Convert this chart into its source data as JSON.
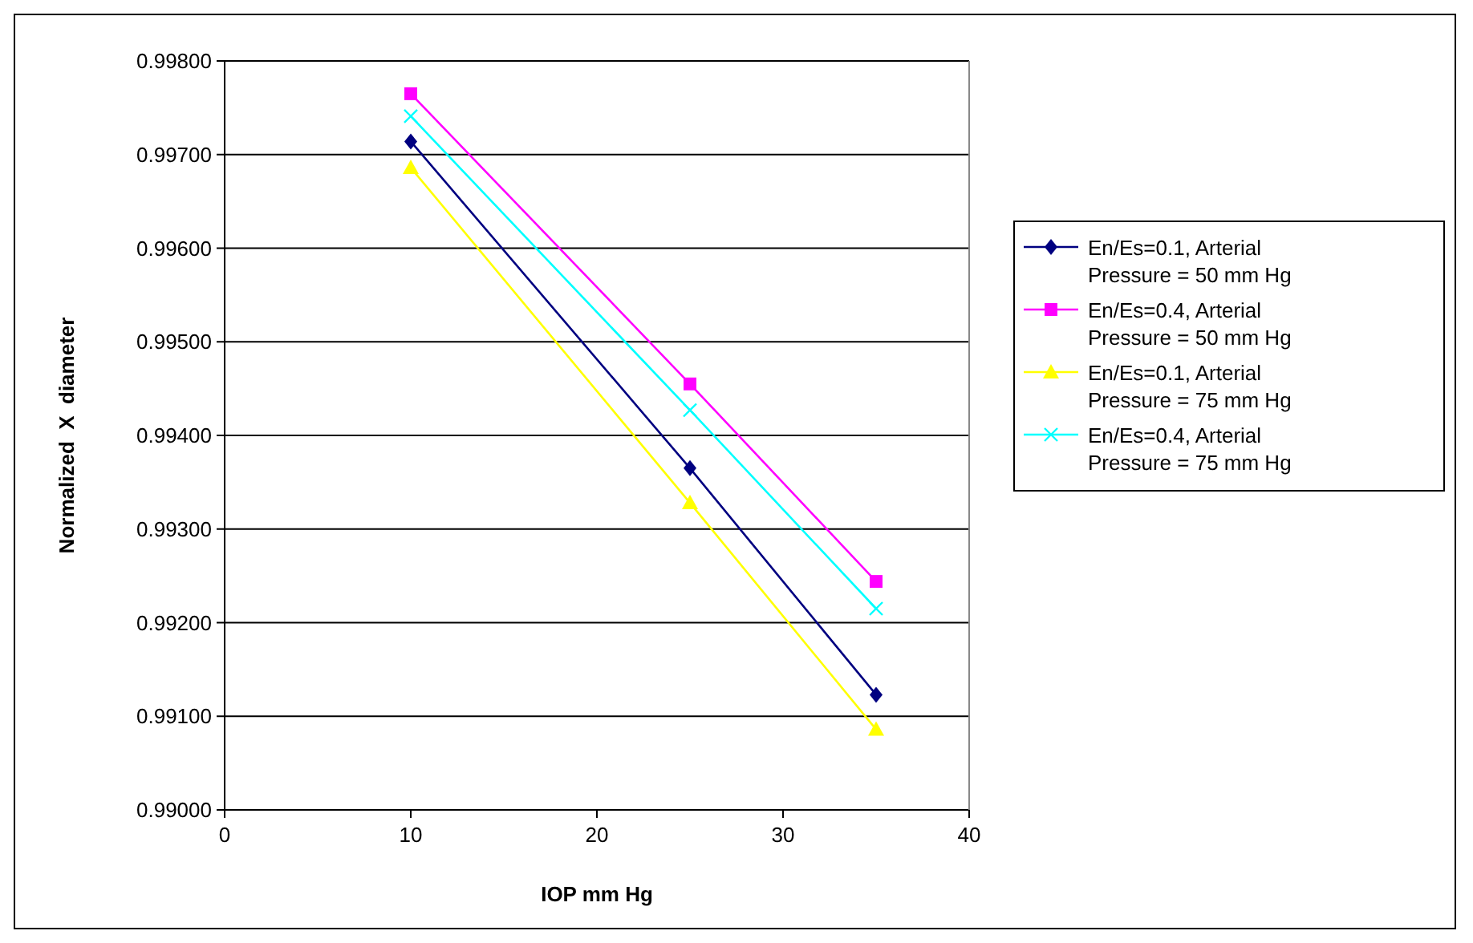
{
  "chart_data": {
    "type": "line",
    "xlabel": "IOP mm Hg",
    "ylabel": "Normalized  X  diameter",
    "x": [
      10,
      25,
      35
    ],
    "series": [
      {
        "name": "En/Es=0.1, Arterial Pressure = 50 mm Hg",
        "color": "#000080",
        "marker": "diamond",
        "values": [
          0.99714,
          0.99365,
          0.99123
        ]
      },
      {
        "name": "En/Es=0.4, Arterial Pressure = 50 mm Hg",
        "color": "#ff00ff",
        "marker": "square",
        "values": [
          0.99765,
          0.99455,
          0.99244
        ]
      },
      {
        "name": "En/Es=0.1, Arterial Pressure = 75 mm Hg",
        "color": "#ffff00",
        "marker": "triangle",
        "values": [
          0.99686,
          0.99328,
          0.99086
        ]
      },
      {
        "name": "En/Es=0.4, Arterial Pressure = 75 mm Hg",
        "color": "#00ffff",
        "marker": "cross",
        "values": [
          0.99741,
          0.99427,
          0.99215
        ]
      }
    ],
    "xlim": [
      0,
      40
    ],
    "xticks": [
      0,
      10,
      20,
      30,
      40
    ],
    "ylim": [
      0.99,
      0.998
    ],
    "yticks": [
      {
        "value": 0.99,
        "label": "0.99000"
      },
      {
        "value": 0.991,
        "label": "0.99100"
      },
      {
        "value": 0.992,
        "label": "0.99200"
      },
      {
        "value": 0.993,
        "label": "0.99300"
      },
      {
        "value": 0.994,
        "label": "0.99400"
      },
      {
        "value": 0.995,
        "label": "0.99500"
      },
      {
        "value": 0.996,
        "label": "0.99600"
      },
      {
        "value": 0.997,
        "label": "0.99700"
      },
      {
        "value": 0.998,
        "label": "0.99800"
      }
    ],
    "grid": "y",
    "legend": "right",
    "line_style": "solid"
  }
}
